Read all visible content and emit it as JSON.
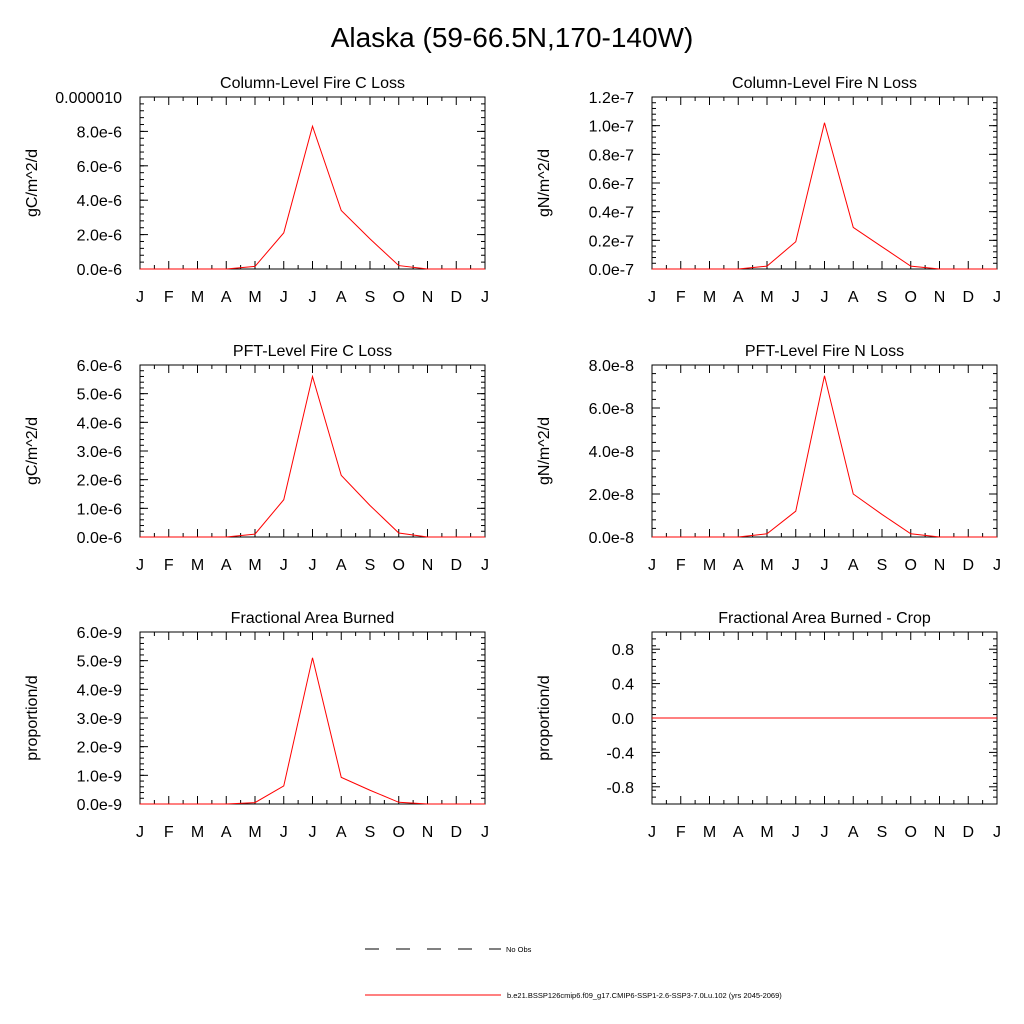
{
  "page": {
    "title": "Alaska (59-66.5N,170-140W)"
  },
  "legend": {
    "items": [
      {
        "label": "No Obs",
        "color": "#000000",
        "style": "dashed"
      },
      {
        "label": "b.e21.BSSP126cmip6.f09_g17.CMIP6-SSP1-2.6-SSP3-7.0Lu.102 (yrs 2045-2069)",
        "color": "#ff0000",
        "style": "solid"
      }
    ]
  },
  "chart_data": [
    {
      "type": "line",
      "title": "Column-Level Fire C Loss",
      "ylabel": "gC/m^2/d",
      "x": [
        "J",
        "F",
        "M",
        "A",
        "M",
        "J",
        "J",
        "A",
        "S",
        "O",
        "N",
        "D",
        "J"
      ],
      "ylim": [
        0,
        1e-05
      ],
      "yticks": [
        0,
        2e-06,
        4e-06,
        6e-06,
        8e-06,
        1e-05
      ],
      "yticklabels": [
        "0.0e-6",
        "2.0e-6",
        "4.0e-6",
        "6.0e-6",
        "8.0e-6",
        "0.000010"
      ],
      "series": [
        {
          "color": "#ff0000",
          "values": [
            0,
            0,
            0,
            0,
            1.5e-07,
            2.1e-06,
            8.3e-06,
            3.4e-06,
            1.75e-06,
            2e-07,
            0,
            0,
            0
          ]
        }
      ]
    },
    {
      "type": "line",
      "title": "Column-Level Fire N Loss",
      "ylabel": "gN/m^2/d",
      "x": [
        "J",
        "F",
        "M",
        "A",
        "M",
        "J",
        "J",
        "A",
        "S",
        "O",
        "N",
        "D",
        "J"
      ],
      "ylim": [
        0,
        1.2e-07
      ],
      "yticks": [
        0,
        2e-08,
        4e-08,
        6e-08,
        8e-08,
        1e-07,
        1.2e-07
      ],
      "yticklabels": [
        "0.0e-7",
        "0.2e-7",
        "0.4e-7",
        "0.6e-7",
        "0.8e-7",
        "1.0e-7",
        "1.2e-7"
      ],
      "series": [
        {
          "color": "#ff0000",
          "values": [
            0,
            0,
            0,
            0,
            2e-09,
            1.9e-08,
            1.02e-07,
            2.9e-08,
            1.55e-08,
            2e-09,
            0,
            0,
            0
          ]
        }
      ]
    },
    {
      "type": "line",
      "title": "PFT-Level Fire C Loss",
      "ylabel": "gC/m^2/d",
      "x": [
        "J",
        "F",
        "M",
        "A",
        "M",
        "J",
        "J",
        "A",
        "S",
        "O",
        "N",
        "D",
        "J"
      ],
      "ylim": [
        0,
        6e-06
      ],
      "yticks": [
        0,
        1e-06,
        2e-06,
        3e-06,
        4e-06,
        5e-06,
        6e-06
      ],
      "yticklabels": [
        "0.0e-6",
        "1.0e-6",
        "2.0e-6",
        "3.0e-6",
        "4.0e-6",
        "5.0e-6",
        "6.0e-6"
      ],
      "series": [
        {
          "color": "#ff0000",
          "values": [
            0,
            0,
            0,
            0,
            1e-07,
            1.3e-06,
            5.6e-06,
            2.15e-06,
            1.1e-06,
            1.4e-07,
            0,
            0,
            0
          ]
        }
      ]
    },
    {
      "type": "line",
      "title": "PFT-Level Fire N Loss",
      "ylabel": "gN/m^2/d",
      "x": [
        "J",
        "F",
        "M",
        "A",
        "M",
        "J",
        "J",
        "A",
        "S",
        "O",
        "N",
        "D",
        "J"
      ],
      "ylim": [
        0,
        8e-08
      ],
      "yticks": [
        0,
        2e-08,
        4e-08,
        6e-08,
        8e-08
      ],
      "yticklabels": [
        "0.0e-8",
        "2.0e-8",
        "4.0e-8",
        "6.0e-8",
        "8.0e-8"
      ],
      "series": [
        {
          "color": "#ff0000",
          "values": [
            0,
            0,
            0,
            0,
            1.5e-09,
            1.2e-08,
            7.5e-08,
            2e-08,
            1.05e-08,
            1.5e-09,
            0,
            0,
            0
          ]
        }
      ]
    },
    {
      "type": "line",
      "title": "Fractional Area Burned",
      "ylabel": "proportion/d",
      "x": [
        "J",
        "F",
        "M",
        "A",
        "M",
        "J",
        "J",
        "A",
        "S",
        "O",
        "N",
        "D",
        "J"
      ],
      "ylim": [
        0,
        6e-09
      ],
      "yticks": [
        0,
        1e-09,
        2e-09,
        3e-09,
        4e-09,
        5e-09,
        6e-09
      ],
      "yticklabels": [
        "0.0e-9",
        "1.0e-9",
        "2.0e-9",
        "3.0e-9",
        "4.0e-9",
        "5.0e-9",
        "6.0e-9"
      ],
      "series": [
        {
          "color": "#ff0000",
          "values": [
            0,
            0,
            0,
            0,
            5e-11,
            6.3e-10,
            5.1e-09,
            9.3e-10,
            4.8e-10,
            6e-11,
            0,
            0,
            0
          ]
        }
      ]
    },
    {
      "type": "line",
      "title": "Fractional Area Burned - Crop",
      "ylabel": "proportion/d",
      "x": [
        "J",
        "F",
        "M",
        "A",
        "M",
        "J",
        "J",
        "A",
        "S",
        "O",
        "N",
        "D",
        "J"
      ],
      "ylim": [
        -1.0,
        1.0
      ],
      "yticks": [
        -0.8,
        -0.4,
        0.0,
        0.4,
        0.8
      ],
      "yticklabels": [
        "-0.8",
        "-0.4",
        "0.0",
        "0.4",
        "0.8"
      ],
      "series": [
        {
          "color": "#ff0000",
          "values": [
            0,
            0,
            0,
            0,
            0,
            0,
            0,
            0,
            0,
            0,
            0,
            0,
            0
          ]
        }
      ]
    }
  ]
}
